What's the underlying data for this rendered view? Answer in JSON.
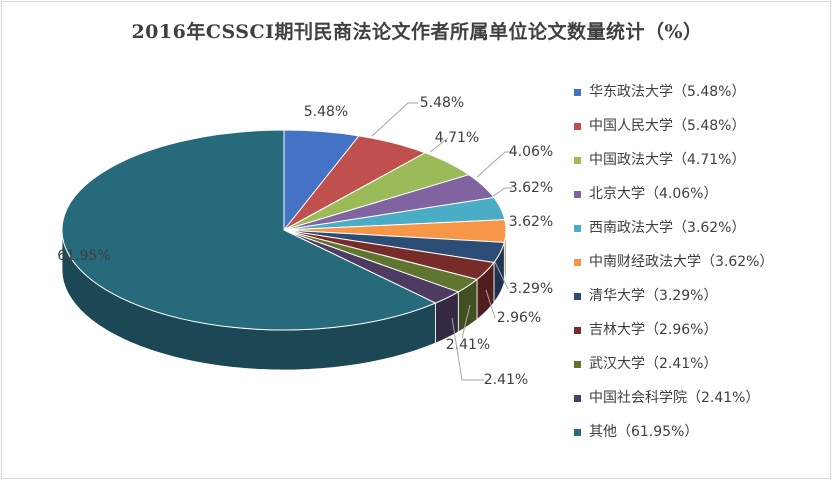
{
  "chart_data": {
    "type": "pie",
    "title": "2016年CSSCI期刊民商法论文作者所属单位论文数量统计（%）",
    "legend_position": "right",
    "unit": "%",
    "slices": [
      {
        "name": "华东政法大学",
        "legend": "华东政法大学（5.48%）",
        "value": 5.48,
        "label": "5.48%",
        "color": "#4472c4"
      },
      {
        "name": "中国人民大学",
        "legend": "中国人民大学（5.48%）",
        "value": 5.48,
        "label": "5.48%",
        "color": "#c0504d"
      },
      {
        "name": "中国政法大学",
        "legend": "中国政法大学（4.71%）",
        "value": 4.71,
        "label": "4.71%",
        "color": "#9bbb59"
      },
      {
        "name": "北京大学",
        "legend": "北京大学（4.06%）",
        "value": 4.06,
        "label": "4.06%",
        "color": "#8064a2"
      },
      {
        "name": "西南政法大学",
        "legend": "西南政法大学（3.62%）",
        "value": 3.62,
        "label": "3.62%",
        "color": "#4bacc6"
      },
      {
        "name": "中南财经政法大学",
        "legend": "中南财经政法大学（3.62%）",
        "value": 3.62,
        "label": "3.62%",
        "color": "#f79646"
      },
      {
        "name": "清华大学",
        "legend": "清华大学（3.29%）",
        "value": 3.29,
        "label": "3.29%",
        "color": "#2c4d75"
      },
      {
        "name": "吉林大学",
        "legend": "吉林大学（2.96%）",
        "value": 2.96,
        "label": "2.96%",
        "color": "#772c2a"
      },
      {
        "name": "武汉大学",
        "legend": "武汉大学（2.41%）",
        "value": 2.41,
        "label": "2.41%",
        "color": "#5f7530"
      },
      {
        "name": "中国社会科学院",
        "legend": "中国社会科学院（2.41%）",
        "value": 2.41,
        "label": "2.41%",
        "color": "#4d3b62"
      },
      {
        "name": "其他",
        "legend": "其他（61.95%）",
        "value": 61.95,
        "label": "61.95%",
        "color": "#276a7c"
      }
    ]
  }
}
